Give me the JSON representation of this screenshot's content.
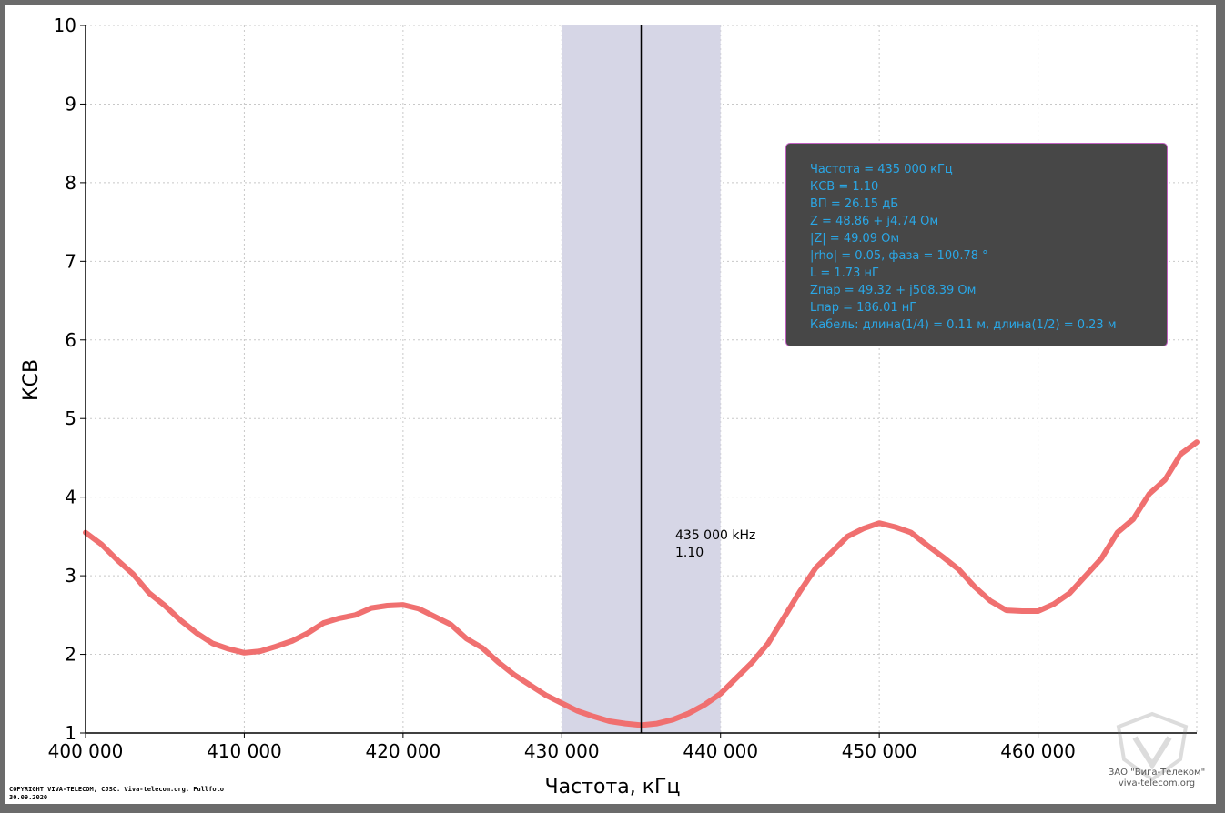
{
  "chart_data": {
    "type": "line",
    "xlabel": "Частота, кГц",
    "ylabel": "КСВ",
    "xlim": [
      400000,
      470000
    ],
    "ylim": [
      1,
      10
    ],
    "x_ticks": [
      400000,
      410000,
      420000,
      430000,
      440000,
      450000,
      460000
    ],
    "x_tick_labels": [
      "400 000",
      "410 000",
      "420 000",
      "430 000",
      "440 000",
      "450 000",
      "460 000"
    ],
    "y_ticks": [
      1,
      2,
      3,
      4,
      5,
      6,
      7,
      8,
      9,
      10
    ],
    "y_tick_labels": [
      "1",
      "2",
      "3",
      "4",
      "5",
      "6",
      "7",
      "8",
      "9",
      "10"
    ],
    "grid": true,
    "series": [
      {
        "color": "#f07070",
        "x": [
          400000,
          401000,
          402000,
          403000,
          404000,
          405000,
          406000,
          407000,
          408000,
          409000,
          410000,
          411000,
          412000,
          413000,
          414000,
          415000,
          416000,
          417000,
          418000,
          419000,
          420000,
          421000,
          422000,
          423000,
          424000,
          425000,
          426000,
          427000,
          428000,
          429000,
          430000,
          431000,
          432000,
          433000,
          434000,
          435000,
          436000,
          437000,
          438000,
          439000,
          440000,
          441000,
          442000,
          443000,
          444000,
          445000,
          446000,
          447000,
          448000,
          449000,
          450000,
          451000,
          452000,
          453000,
          454000,
          455000,
          456000,
          457000,
          458000,
          459000,
          460000,
          461000,
          462000,
          463000,
          464000,
          465000,
          466000,
          467000,
          468000,
          469000,
          470000
        ],
        "y": [
          3.55,
          3.4,
          3.2,
          3.02,
          2.78,
          2.62,
          2.43,
          2.27,
          2.14,
          2.07,
          2.02,
          2.04,
          2.1,
          2.17,
          2.27,
          2.4,
          2.46,
          2.5,
          2.59,
          2.62,
          2.63,
          2.58,
          2.48,
          2.38,
          2.2,
          2.08,
          1.9,
          1.74,
          1.61,
          1.48,
          1.38,
          1.28,
          1.21,
          1.15,
          1.12,
          1.1,
          1.12,
          1.17,
          1.25,
          1.36,
          1.5,
          1.7,
          1.9,
          2.14,
          2.47,
          2.8,
          3.1,
          3.3,
          3.5,
          3.6,
          3.67,
          3.62,
          3.55,
          3.39,
          3.24,
          3.08,
          2.86,
          2.68,
          2.56,
          2.55,
          2.55,
          2.64,
          2.78,
          3.0,
          3.22,
          3.55,
          3.72,
          4.04,
          4.22,
          4.55,
          4.7
        ]
      }
    ],
    "band": {
      "x_start": 430000,
      "x_end": 440000,
      "color": "#d6d6e6"
    },
    "marker": {
      "x": 435000,
      "label_freq": "435 000 kHz",
      "label_value": "1.10"
    }
  },
  "info_box": {
    "lines": [
      "Частота = 435 000 кГц",
      "КСВ = 1.10",
      "ВП = 26.15 дБ",
      "Z = 48.86 + j4.74 Ом",
      "|Z| = 49.09 Ом",
      "|rho| = 0.05, фаза = 100.78 °",
      "L = 1.73 нГ",
      "Zпар = 49.32 + j508.39 Ом",
      "Lпар = 186.01 нГ",
      "Кабель: длина(1/4) = 0.11 м, длина(1/2) = 0.23 м"
    ]
  },
  "copyright": {
    "line1": "COPYRIGHT VIVA-TELECOM, CJSC. Viva-telecom.org. Fullfoto",
    "line2": "30.09.2020"
  },
  "watermark": {
    "company": "ЗАО \"Вига-Телеком\"",
    "site": "viva-telecom.org"
  }
}
